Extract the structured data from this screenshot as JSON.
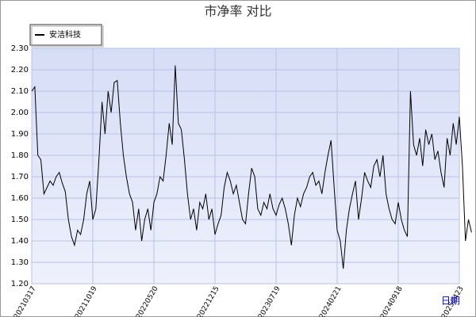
{
  "chart_data": {
    "type": "line",
    "title": "市净率  对比",
    "x_label": "日期",
    "legend_position": "upper left",
    "grid": true,
    "series": [
      {
        "name": "安洁科技",
        "color": "#000000",
        "values": [
          2.1,
          2.12,
          1.8,
          1.78,
          1.62,
          1.65,
          1.68,
          1.66,
          1.7,
          1.72,
          1.67,
          1.63,
          1.5,
          1.42,
          1.38,
          1.45,
          1.43,
          1.5,
          1.62,
          1.68,
          1.5,
          1.55,
          1.78,
          2.05,
          1.9,
          2.1,
          2.0,
          2.14,
          2.15,
          1.95,
          1.8,
          1.7,
          1.62,
          1.58,
          1.45,
          1.55,
          1.4,
          1.5,
          1.55,
          1.45,
          1.58,
          1.62,
          1.7,
          1.68,
          1.8,
          1.95,
          1.85,
          2.22,
          1.95,
          1.92,
          1.78,
          1.62,
          1.5,
          1.55,
          1.45,
          1.58,
          1.55,
          1.62,
          1.5,
          1.55,
          1.43,
          1.48,
          1.52,
          1.65,
          1.72,
          1.68,
          1.62,
          1.66,
          1.58,
          1.5,
          1.48,
          1.62,
          1.74,
          1.7,
          1.55,
          1.52,
          1.58,
          1.55,
          1.62,
          1.55,
          1.52,
          1.57,
          1.6,
          1.55,
          1.48,
          1.38,
          1.52,
          1.6,
          1.56,
          1.62,
          1.65,
          1.7,
          1.72,
          1.66,
          1.68,
          1.62,
          1.72,
          1.8,
          1.87,
          1.65,
          1.45,
          1.4,
          1.27,
          1.45,
          1.55,
          1.62,
          1.68,
          1.5,
          1.6,
          1.72,
          1.68,
          1.65,
          1.75,
          1.78,
          1.7,
          1.8,
          1.62,
          1.55,
          1.5,
          1.48,
          1.58,
          1.5,
          1.45,
          1.42,
          2.1,
          1.85,
          1.8,
          1.88,
          1.75,
          1.92,
          1.85,
          1.9,
          1.78,
          1.82,
          1.72,
          1.65,
          1.88,
          1.8,
          1.95,
          1.85,
          1.98,
          1.75,
          1.4,
          1.5,
          1.44
        ]
      }
    ],
    "xlim": [
      0,
      140
    ],
    "xticks": [
      {
        "value": 0,
        "label": "20210317"
      },
      {
        "value": 20,
        "label": "20211019"
      },
      {
        "value": 40,
        "label": "20220520"
      },
      {
        "value": 60,
        "label": "20221215"
      },
      {
        "value": 80,
        "label": "20230719"
      },
      {
        "value": 100,
        "label": "20240221"
      },
      {
        "value": 120,
        "label": "20240918"
      },
      {
        "value": 140,
        "label": "20250423"
      }
    ],
    "ylim": [
      1.2,
      2.3
    ],
    "yticks": [
      {
        "value": 1.2,
        "label": "1.20"
      },
      {
        "value": 1.3,
        "label": "1.30"
      },
      {
        "value": 1.4,
        "label": "1.40"
      },
      {
        "value": 1.5,
        "label": "1.50"
      },
      {
        "value": 1.6,
        "label": "1.60"
      },
      {
        "value": 1.7,
        "label": "1.70"
      },
      {
        "value": 1.8,
        "label": "1.80"
      },
      {
        "value": 1.9,
        "label": "1.90"
      },
      {
        "value": 2.0,
        "label": "2.00"
      },
      {
        "value": 2.1,
        "label": "2.10"
      },
      {
        "value": 2.2,
        "label": "2.20"
      },
      {
        "value": 2.3,
        "label": "2.30"
      }
    ]
  }
}
